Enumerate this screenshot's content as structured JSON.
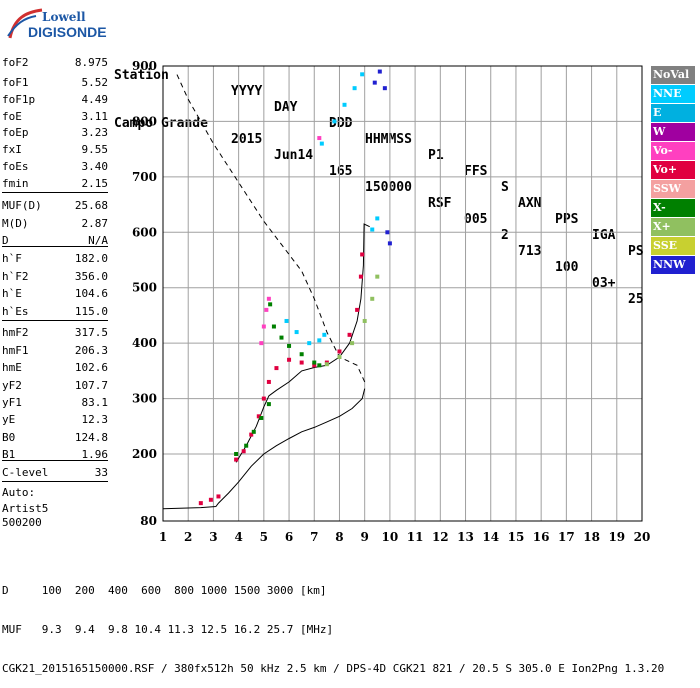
{
  "logo": {
    "line1": "Lowell",
    "line2": "DIGISONDE"
  },
  "header": {
    "labels": [
      "Station",
      "YYYY",
      "DAY",
      "DDD",
      "HHMMSS",
      "P1",
      "FFS",
      "S",
      "AXN",
      "PPS",
      "IGA",
      "PS"
    ],
    "values": [
      "Campo Grande",
      "2015",
      "Jun14",
      "165",
      "150000",
      "RSF",
      "005",
      "2",
      "713",
      "100",
      "03+",
      "25"
    ]
  },
  "params": [
    {
      "k": "foF2",
      "v": "8.975"
    },
    {
      "k": "foF1",
      "v": "5.52"
    },
    {
      "k": "foF1p",
      "v": "4.49"
    },
    {
      "k": "foE",
      "v": "3.11"
    },
    {
      "k": "foEp",
      "v": "3.23"
    },
    {
      "k": "fxI",
      "v": "9.55"
    },
    {
      "k": "foEs",
      "v": "3.40"
    },
    {
      "k": "fmin",
      "v": "2.15"
    },
    {
      "k": "MUF(D)",
      "v": "25.68"
    },
    {
      "k": "M(D)",
      "v": "2.87"
    },
    {
      "k": "D",
      "v": "N/A"
    },
    {
      "k": "h`F",
      "v": "182.0"
    },
    {
      "k": "h`F2",
      "v": "356.0"
    },
    {
      "k": "h`E",
      "v": "104.6"
    },
    {
      "k": "h`Es",
      "v": "115.0"
    },
    {
      "k": "hmF2",
      "v": "317.5"
    },
    {
      "k": "hmF1",
      "v": "206.3"
    },
    {
      "k": "hmE",
      "v": "102.6"
    },
    {
      "k": "yF2",
      "v": "107.7"
    },
    {
      "k": "yF1",
      "v": "83.1"
    },
    {
      "k": "yE",
      "v": "12.3"
    },
    {
      "k": "B0",
      "v": "124.8"
    },
    {
      "k": "B1",
      "v": "1.96"
    },
    {
      "k": "C-level",
      "v": "33"
    }
  ],
  "auto": [
    "Auto:",
    "Artist5",
    "500200"
  ],
  "legend": [
    {
      "label": "NoVal",
      "color": "#808080",
      "text": "#ffffff"
    },
    {
      "label": "NNE",
      "color": "#00ccff",
      "text": "#ffffff"
    },
    {
      "label": "E",
      "color": "#00b0e0",
      "text": "#ffffff"
    },
    {
      "label": "W",
      "color": "#a000a0",
      "text": "#ffffff"
    },
    {
      "label": "Vo-",
      "color": "#ff40c0",
      "text": "#ffffff"
    },
    {
      "label": "Vo+",
      "color": "#e00040",
      "text": "#ffffff"
    },
    {
      "label": "SSW",
      "color": "#f4a0a0",
      "text": "#ffffff"
    },
    {
      "label": "X-",
      "color": "#008000",
      "text": "#ffffff"
    },
    {
      "label": "X+",
      "color": "#90c060",
      "text": "#ffffff"
    },
    {
      "label": "SSE",
      "color": "#c8d030",
      "text": "#ffffff"
    },
    {
      "label": "NNW",
      "color": "#2020d0",
      "text": "#ffffff"
    }
  ],
  "footer": {
    "line1": "D     100  200  400  600  800 1000 1500 3000 [km]",
    "line2": "MUF   9.3  9.4  9.8 10.4 11.3 12.5 16.2 25.7 [MHz]",
    "line3": "CGK21_2015165150000.RSF / 380fx512h 50 kHz 2.5 km / DPS-4D CGK21 821 / 20.5 S 305.0 E Ion2Png 1.3.20"
  },
  "chart_data": {
    "type": "scatter",
    "x_ticks": [
      "1",
      "2",
      "3",
      "4",
      "5",
      "6",
      "7",
      "8",
      "9",
      "10",
      "11",
      "12",
      "13",
      "14",
      "15",
      "16",
      "17",
      "18",
      "19",
      "20"
    ],
    "y_ticks": [
      "80",
      "200",
      "300",
      "400",
      "500",
      "600",
      "700",
      "800",
      "900"
    ],
    "xlim": [
      1,
      20
    ],
    "ylim": [
      80,
      900
    ],
    "grid": true,
    "legend_placement": "right",
    "series": [
      {
        "name": "Vo+",
        "color": "#e00040",
        "values": [
          [
            2.5,
            112
          ],
          [
            2.9,
            118
          ],
          [
            3.2,
            124
          ],
          [
            3.9,
            190
          ],
          [
            4.2,
            205
          ],
          [
            4.5,
            235
          ],
          [
            4.8,
            268
          ],
          [
            5.0,
            300
          ],
          [
            5.2,
            330
          ],
          [
            5.5,
            355
          ],
          [
            6.0,
            370
          ],
          [
            6.5,
            365
          ],
          [
            7.0,
            360
          ],
          [
            7.5,
            365
          ],
          [
            8.0,
            385
          ],
          [
            8.4,
            415
          ],
          [
            8.7,
            460
          ],
          [
            8.85,
            520
          ],
          [
            8.9,
            560
          ]
        ]
      },
      {
        "name": "X-",
        "color": "#008000",
        "values": [
          [
            3.9,
            200
          ],
          [
            4.3,
            215
          ],
          [
            4.6,
            240
          ],
          [
            4.9,
            265
          ],
          [
            5.2,
            290
          ],
          [
            5.25,
            470
          ],
          [
            5.4,
            430
          ],
          [
            5.7,
            410
          ],
          [
            6.0,
            395
          ],
          [
            6.5,
            380
          ],
          [
            7.0,
            365
          ],
          [
            7.2,
            360
          ]
        ]
      },
      {
        "name": "X+",
        "color": "#90c060",
        "values": [
          [
            7.5,
            362
          ],
          [
            8.0,
            375
          ],
          [
            8.5,
            400
          ],
          [
            9.0,
            440
          ],
          [
            9.3,
            480
          ],
          [
            9.5,
            520
          ]
        ]
      },
      {
        "name": "NNE",
        "color": "#00ccff",
        "values": [
          [
            5.9,
            440
          ],
          [
            6.3,
            420
          ],
          [
            6.8,
            400
          ],
          [
            7.2,
            405
          ],
          [
            7.4,
            415
          ],
          [
            7.3,
            760
          ],
          [
            7.8,
            800
          ],
          [
            8.2,
            830
          ],
          [
            8.6,
            860
          ],
          [
            8.9,
            885
          ],
          [
            9.3,
            605
          ],
          [
            9.5,
            625
          ]
        ]
      },
      {
        "name": "Vo-",
        "color": "#ff40c0",
        "values": [
          [
            5.0,
            430
          ],
          [
            5.1,
            460
          ],
          [
            5.2,
            480
          ],
          [
            4.9,
            400
          ],
          [
            7.2,
            770
          ]
        ]
      },
      {
        "name": "NNW",
        "color": "#2020d0",
        "values": [
          [
            9.4,
            870
          ],
          [
            9.6,
            890
          ],
          [
            9.8,
            860
          ],
          [
            9.9,
            600
          ],
          [
            10.0,
            580
          ]
        ]
      }
    ],
    "virtual_trace": [
      [
        3.9,
        185
      ],
      [
        4.3,
        215
      ],
      [
        4.7,
        250
      ],
      [
        5.0,
        285
      ],
      [
        5.2,
        305
      ],
      [
        5.5,
        315
      ],
      [
        6.0,
        330
      ],
      [
        6.5,
        350
      ],
      [
        7.0,
        356
      ],
      [
        7.5,
        360
      ],
      [
        8.0,
        375
      ],
      [
        8.4,
        400
      ],
      [
        8.7,
        440
      ],
      [
        8.85,
        480
      ],
      [
        8.95,
        540
      ],
      [
        8.975,
        615
      ],
      [
        9.2,
        610
      ]
    ],
    "profile_trace": [
      [
        1.0,
        102
      ],
      [
        2.5,
        104
      ],
      [
        3.1,
        106
      ],
      [
        3.2,
        112
      ],
      [
        3.6,
        130
      ],
      [
        4.0,
        150
      ],
      [
        4.5,
        178
      ],
      [
        5.0,
        200
      ],
      [
        5.5,
        215
      ],
      [
        6.0,
        228
      ],
      [
        6.5,
        240
      ],
      [
        7.0,
        248
      ],
      [
        7.5,
        258
      ],
      [
        8.0,
        268
      ],
      [
        8.5,
        282
      ],
      [
        8.9,
        300
      ],
      [
        9.0,
        318
      ]
    ],
    "extrapolated_trace": [
      [
        9.0,
        330
      ],
      [
        8.7,
        360
      ],
      [
        8.0,
        375
      ],
      [
        7.5,
        420
      ],
      [
        7.0,
        480
      ],
      [
        6.5,
        530
      ],
      [
        6.0,
        560
      ],
      [
        5.0,
        620
      ],
      [
        4.0,
        690
      ],
      [
        3.0,
        760
      ],
      [
        2.0,
        840
      ],
      [
        1.5,
        890
      ]
    ]
  }
}
